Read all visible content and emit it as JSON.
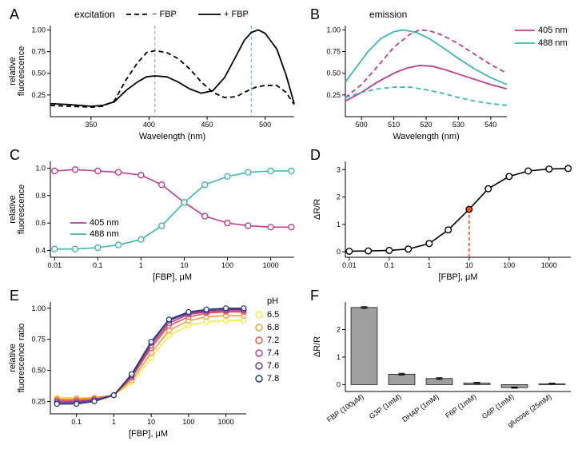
{
  "panelA": {
    "label": "A",
    "title": "excitation",
    "legend_items": [
      {
        "dash": "6,4",
        "label": "− FBP"
      },
      {
        "dash": "",
        "label": "+ FBP"
      }
    ],
    "xlabel": "Wavelength (nm)",
    "ylabel": "relative\nfluorescence",
    "xlim": [
      315,
      525
    ],
    "ylim": [
      0,
      1.05
    ],
    "xticks": [
      350,
      400,
      450,
      500
    ],
    "yticks": [
      0.25,
      0.5,
      0.75,
      1.0
    ],
    "vlines": [
      405,
      488
    ],
    "vline_color": "#6ba3d6",
    "curves": [
      {
        "color": "#000000",
        "dash": "6,4",
        "width": 1.8,
        "pts": [
          [
            315,
            0.13
          ],
          [
            330,
            0.12
          ],
          [
            350,
            0.11
          ],
          [
            360,
            0.12
          ],
          [
            370,
            0.18
          ],
          [
            380,
            0.42
          ],
          [
            390,
            0.62
          ],
          [
            398,
            0.74
          ],
          [
            405,
            0.76
          ],
          [
            415,
            0.74
          ],
          [
            425,
            0.67
          ],
          [
            435,
            0.55
          ],
          [
            445,
            0.4
          ],
          [
            455,
            0.28
          ],
          [
            465,
            0.22
          ],
          [
            475,
            0.23
          ],
          [
            485,
            0.3
          ],
          [
            492,
            0.34
          ],
          [
            500,
            0.36
          ],
          [
            510,
            0.36
          ],
          [
            518,
            0.28
          ],
          [
            525,
            0.14
          ]
        ]
      },
      {
        "color": "#000000",
        "dash": "",
        "width": 1.8,
        "pts": [
          [
            315,
            0.15
          ],
          [
            330,
            0.14
          ],
          [
            350,
            0.12
          ],
          [
            360,
            0.13
          ],
          [
            370,
            0.17
          ],
          [
            380,
            0.3
          ],
          [
            390,
            0.4
          ],
          [
            398,
            0.46
          ],
          [
            405,
            0.47
          ],
          [
            415,
            0.46
          ],
          [
            425,
            0.4
          ],
          [
            435,
            0.32
          ],
          [
            445,
            0.27
          ],
          [
            455,
            0.3
          ],
          [
            465,
            0.45
          ],
          [
            475,
            0.7
          ],
          [
            482,
            0.88
          ],
          [
            488,
            0.97
          ],
          [
            494,
            1.0
          ],
          [
            500,
            0.96
          ],
          [
            510,
            0.78
          ],
          [
            518,
            0.48
          ],
          [
            525,
            0.15
          ]
        ]
      }
    ]
  },
  "panelB": {
    "label": "B",
    "title": "emission",
    "legend_items": [
      {
        "color": "#c23b8e",
        "label": "405 nm"
      },
      {
        "color": "#3fb8ac",
        "label": "488 nm"
      }
    ],
    "xlabel": "Wavelength (nm)",
    "xlim": [
      495,
      545
    ],
    "ylim": [
      0,
      1.05
    ],
    "xticks": [
      500,
      510,
      520,
      530,
      540
    ],
    "yticks": [
      0.25,
      0.5,
      0.75,
      1.0
    ],
    "curves": [
      {
        "color": "#c23b8e",
        "dash": "6,4",
        "width": 1.8,
        "pts": [
          [
            495,
            0.22
          ],
          [
            500,
            0.37
          ],
          [
            505,
            0.58
          ],
          [
            510,
            0.8
          ],
          [
            515,
            0.95
          ],
          [
            518,
            1.0
          ],
          [
            521,
            0.99
          ],
          [
            525,
            0.94
          ],
          [
            530,
            0.84
          ],
          [
            535,
            0.72
          ],
          [
            540,
            0.6
          ],
          [
            545,
            0.5
          ]
        ]
      },
      {
        "color": "#c23b8e",
        "dash": "",
        "width": 1.8,
        "pts": [
          [
            495,
            0.18
          ],
          [
            500,
            0.28
          ],
          [
            505,
            0.4
          ],
          [
            510,
            0.5
          ],
          [
            514,
            0.56
          ],
          [
            518,
            0.59
          ],
          [
            522,
            0.58
          ],
          [
            526,
            0.54
          ],
          [
            530,
            0.49
          ],
          [
            535,
            0.43
          ],
          [
            540,
            0.37
          ],
          [
            545,
            0.32
          ]
        ]
      },
      {
        "color": "#3fb8ac",
        "dash": "6,4",
        "width": 1.8,
        "pts": [
          [
            495,
            0.22
          ],
          [
            500,
            0.28
          ],
          [
            505,
            0.32
          ],
          [
            510,
            0.34
          ],
          [
            515,
            0.34
          ],
          [
            520,
            0.31
          ],
          [
            525,
            0.27
          ],
          [
            530,
            0.22
          ],
          [
            535,
            0.18
          ],
          [
            540,
            0.15
          ],
          [
            545,
            0.13
          ]
        ]
      },
      {
        "color": "#3fb8ac",
        "dash": "",
        "width": 1.8,
        "pts": [
          [
            495,
            0.4
          ],
          [
            498,
            0.55
          ],
          [
            502,
            0.75
          ],
          [
            506,
            0.9
          ],
          [
            510,
            0.98
          ],
          [
            513,
            1.0
          ],
          [
            517,
            0.97
          ],
          [
            521,
            0.9
          ],
          [
            525,
            0.8
          ],
          [
            530,
            0.67
          ],
          [
            535,
            0.55
          ],
          [
            540,
            0.45
          ],
          [
            545,
            0.37
          ]
        ]
      }
    ]
  },
  "panelC": {
    "label": "C",
    "legend_items": [
      {
        "color": "#c23b8e",
        "label": "405 nm"
      },
      {
        "color": "#3fb8ac",
        "label": "488 nm"
      }
    ],
    "xlabel": "[FBP], μM",
    "ylabel": "relative\nfluorescence",
    "xlim": [
      0.008,
      3500
    ],
    "ylim": [
      0.35,
      1.05
    ],
    "xticks": [
      0.01,
      0.1,
      1,
      10,
      100,
      1000
    ],
    "yticks": [
      0.4,
      0.6,
      0.8,
      1.0
    ],
    "series": [
      {
        "color": "#c23b8e",
        "x": [
          0.01,
          0.03,
          0.1,
          0.3,
          1,
          3,
          10,
          30,
          100,
          300,
          1000,
          3000
        ],
        "y": [
          0.98,
          0.99,
          0.98,
          0.97,
          0.95,
          0.88,
          0.75,
          0.65,
          0.6,
          0.58,
          0.57,
          0.57
        ]
      },
      {
        "color": "#3fb8ac",
        "x": [
          0.01,
          0.03,
          0.1,
          0.3,
          1,
          3,
          10,
          30,
          100,
          300,
          1000,
          3000
        ],
        "y": [
          0.41,
          0.41,
          0.42,
          0.44,
          0.48,
          0.58,
          0.75,
          0.88,
          0.94,
          0.97,
          0.98,
          0.98
        ]
      }
    ]
  },
  "panelD": {
    "label": "D",
    "xlabel": "[FBP], μM",
    "ylabel": "ΔR/R",
    "xlim": [
      0.008,
      3500
    ],
    "ylim": [
      -0.2,
      3.3
    ],
    "xticks": [
      0.01,
      0.1,
      1,
      10,
      100,
      1000
    ],
    "yticks": [
      0,
      1,
      2,
      3
    ],
    "vline": 10,
    "vline_color": "#f04e23",
    "series": {
      "color": "#000000",
      "fill": "#ffffff",
      "x": [
        0.01,
        0.03,
        0.1,
        0.3,
        1,
        3,
        10,
        30,
        100,
        300,
        1000,
        3000
      ],
      "y": [
        0.02,
        0.03,
        0.05,
        0.1,
        0.3,
        0.8,
        1.55,
        2.3,
        2.75,
        2.95,
        3.02,
        3.04
      ]
    }
  },
  "panelE": {
    "label": "E",
    "xlabel": "[FBP], μM",
    "ylabel": "relative\nfluorescence ratio",
    "legend_title": "pH",
    "legend_items": [
      {
        "color": "#f7e948",
        "label": "6.5"
      },
      {
        "color": "#f2a03d",
        "label": "6.8"
      },
      {
        "color": "#e85a4f",
        "label": "7.2"
      },
      {
        "color": "#c23b8e",
        "label": "7.4"
      },
      {
        "color": "#5d3a9b",
        "label": "7.6"
      },
      {
        "color": "#2a3b76",
        "label": "7.8"
      }
    ],
    "xlim": [
      0.02,
      3500
    ],
    "ylim": [
      0.15,
      1.05
    ],
    "xticks": [
      0.1,
      1,
      10,
      100,
      1000
    ],
    "yticks": [
      0.25,
      0.5,
      0.75,
      1.0
    ],
    "series": [
      {
        "color": "#f7e948",
        "x": [
          0.03,
          0.1,
          0.3,
          1,
          3,
          10,
          30,
          100,
          300,
          1000,
          3000
        ],
        "y": [
          0.28,
          0.28,
          0.28,
          0.3,
          0.4,
          0.6,
          0.78,
          0.86,
          0.89,
          0.9,
          0.9
        ]
      },
      {
        "color": "#f2a03d",
        "x": [
          0.03,
          0.1,
          0.3,
          1,
          3,
          10,
          30,
          100,
          300,
          1000,
          3000
        ],
        "y": [
          0.27,
          0.27,
          0.28,
          0.3,
          0.42,
          0.64,
          0.82,
          0.9,
          0.93,
          0.94,
          0.94
        ]
      },
      {
        "color": "#e85a4f",
        "x": [
          0.03,
          0.1,
          0.3,
          1,
          3,
          10,
          30,
          100,
          300,
          1000,
          3000
        ],
        "y": [
          0.26,
          0.26,
          0.27,
          0.3,
          0.44,
          0.68,
          0.86,
          0.93,
          0.96,
          0.97,
          0.97
        ]
      },
      {
        "color": "#c23b8e",
        "x": [
          0.03,
          0.1,
          0.3,
          1,
          3,
          10,
          30,
          100,
          300,
          1000,
          3000
        ],
        "y": [
          0.25,
          0.25,
          0.26,
          0.3,
          0.45,
          0.7,
          0.88,
          0.95,
          0.97,
          0.98,
          0.98
        ]
      },
      {
        "color": "#5d3a9b",
        "x": [
          0.03,
          0.1,
          0.3,
          1,
          3,
          10,
          30,
          100,
          300,
          1000,
          3000
        ],
        "y": [
          0.24,
          0.24,
          0.26,
          0.3,
          0.46,
          0.72,
          0.9,
          0.96,
          0.98,
          0.99,
          0.99
        ]
      },
      {
        "color": "#2a3b76",
        "x": [
          0.03,
          0.1,
          0.3,
          1,
          3,
          10,
          30,
          100,
          300,
          1000,
          3000
        ],
        "y": [
          0.23,
          0.23,
          0.25,
          0.3,
          0.47,
          0.73,
          0.91,
          0.97,
          0.99,
          1.0,
          1.0
        ]
      }
    ]
  },
  "panelF": {
    "label": "F",
    "ylabel": "ΔR/R",
    "ylim": [
      -0.25,
      3.0
    ],
    "yticks": [
      0,
      1,
      2
    ],
    "bar_color": "#9f9f9f",
    "categories": [
      {
        "label": "FBP (100μM)",
        "value": 2.8,
        "err": 0.03
      },
      {
        "label": "G3P (1mM)",
        "value": 0.38,
        "err": 0.03
      },
      {
        "label": "DHAP (1mM)",
        "value": 0.22,
        "err": 0.03
      },
      {
        "label": "F6P (1mM)",
        "value": 0.06,
        "err": 0.02
      },
      {
        "label": "G6P (1mM)",
        "value": -0.11,
        "err": 0.02
      },
      {
        "label": "glucose (25mM)",
        "value": 0.03,
        "err": 0.02
      }
    ]
  }
}
